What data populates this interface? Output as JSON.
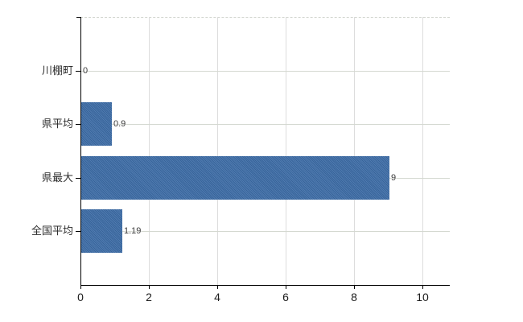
{
  "chart_data": {
    "type": "bar",
    "orientation": "horizontal",
    "title": "",
    "xlabel": "",
    "ylabel": "",
    "categories": [
      "川棚町",
      "県平均",
      "県最大",
      "全国平均"
    ],
    "values": [
      0,
      0.9,
      9,
      1.19
    ],
    "value_labels": [
      "0",
      "0.9",
      "9",
      "1.19"
    ],
    "x_ticks": [
      0,
      2,
      4,
      6,
      8,
      10
    ],
    "x_tick_labels": [
      "0",
      "2",
      "4",
      "6",
      "8",
      "10"
    ],
    "xlim": [
      0,
      10.8
    ],
    "grid": "on",
    "legend": "none",
    "bar_color": "#3c6ca7",
    "grid_color": "#d6d9d2",
    "axis_color": "#000000",
    "label_color": "#2d2d2d",
    "value_label_color": "#3a3a3a"
  }
}
